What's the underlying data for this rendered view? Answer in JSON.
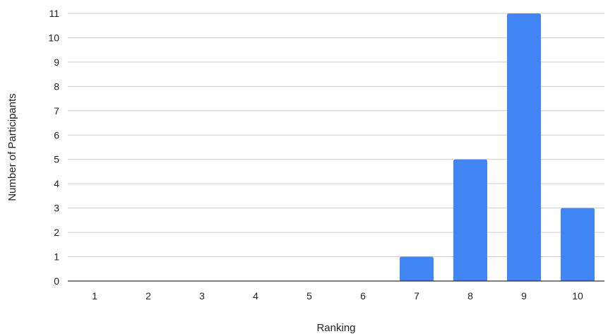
{
  "chart_data": {
    "type": "bar",
    "title": "",
    "xlabel": "Ranking",
    "ylabel": "Number of Participants",
    "categories": [
      "1",
      "2",
      "3",
      "4",
      "5",
      "6",
      "7",
      "8",
      "9",
      "10"
    ],
    "values": [
      0,
      0,
      0,
      0,
      0,
      0,
      1,
      5,
      11,
      3
    ],
    "ylim": [
      0,
      11
    ],
    "yticks": [
      "0",
      "1",
      "2",
      "3",
      "4",
      "5",
      "6",
      "7",
      "8",
      "9",
      "10",
      "11"
    ],
    "grid": true,
    "legend": "none",
    "bar_color": "#4285F4",
    "grid_color": "#cccccc",
    "axis_color": "#333333"
  }
}
